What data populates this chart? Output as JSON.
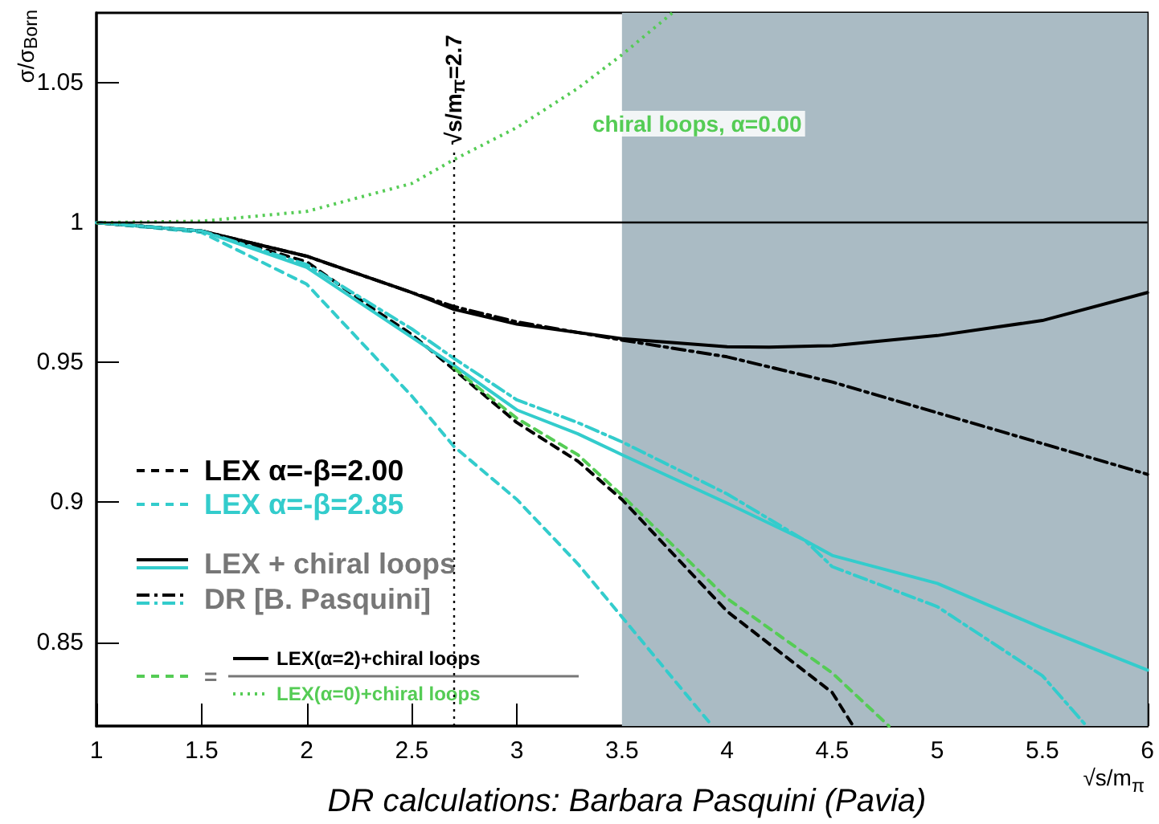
{
  "chart_data": {
    "type": "line",
    "xlabel": "√s/m$_{π}$",
    "ylabel": "σ/σ$_{Born}$",
    "xlim": [
      1,
      6
    ],
    "xticks": [
      1,
      1.5,
      2,
      2.5,
      3,
      3.5,
      4,
      4.5,
      5,
      5.5,
      6
    ],
    "ylim": [
      0.82,
      1.075
    ],
    "yticks": [
      0.85,
      0.9,
      0.95,
      1,
      1.05
    ],
    "grid": false,
    "legend": "bottom left",
    "marker": "none",
    "series": [
      {
        "name": "LEX α=-β=2.00",
        "color": "#000000",
        "line_style": "dashed",
        "x": [
          1,
          1.5,
          2,
          2.32,
          2.5,
          2.7,
          3,
          3.29,
          3.5,
          4,
          4.5,
          4.6
        ],
        "values": [
          1,
          0.997,
          0.986,
          0.969,
          0.96,
          0.9475,
          0.9285,
          0.9147,
          0.901,
          0.861,
          0.832,
          0.82
        ]
      },
      {
        "name": "LEX α=-β=2.85",
        "color": "#33cccc",
        "line_style": "dashed",
        "x": [
          1,
          1.5,
          2,
          2.5,
          2.7,
          3,
          3.29,
          3.5,
          3.93
        ],
        "values": [
          1,
          0.9965,
          0.978,
          0.938,
          0.92,
          0.901,
          0.878,
          0.859,
          0.82
        ]
      },
      {
        "name": "LEX + chiral loops",
        "color": "#000000",
        "line_style": "solid",
        "x": [
          1,
          1.5,
          2,
          2.5,
          2.7,
          3,
          3.5,
          4,
          4.2,
          4.5,
          5,
          5.5,
          6
        ],
        "values": [
          1,
          0.997,
          0.988,
          0.975,
          0.969,
          0.9637,
          0.9585,
          0.9556,
          0.9555,
          0.956,
          0.9596,
          0.965,
          0.975
        ]
      },
      {
        "color": "#33cccc",
        "line_style": "solid",
        "x": [
          1,
          1.5,
          2,
          2.5,
          2.7,
          3,
          3.29,
          3.5,
          4,
          4.37,
          4.5,
          5,
          5.5,
          6
        ],
        "values": [
          1,
          0.997,
          0.984,
          0.959,
          0.949,
          0.933,
          0.9245,
          0.917,
          0.8997,
          0.8864,
          0.881,
          0.871,
          0.855,
          0.84
        ]
      },
      {
        "name": "DR [B. Pasquini]",
        "color": "#000000",
        "line_style": "dashdot",
        "x": [
          1,
          1.5,
          2,
          2.5,
          2.7,
          3,
          3.5,
          4,
          4.5,
          5,
          5.5,
          6
        ],
        "values": [
          1,
          0.997,
          0.988,
          0.975,
          0.97,
          0.9645,
          0.958,
          0.952,
          0.943,
          0.932,
          0.921,
          0.91
        ]
      },
      {
        "color": "#33cccc",
        "line_style": "dashdot",
        "x": [
          1,
          1.5,
          2,
          2.5,
          2.7,
          3,
          3.29,
          3.5,
          4,
          4.37,
          4.5,
          5,
          5.5,
          5.71
        ],
        "values": [
          1,
          0.997,
          0.985,
          0.962,
          0.9515,
          0.9366,
          0.9285,
          0.9216,
          0.903,
          0.8864,
          0.877,
          0.8627,
          0.838,
          0.82
        ]
      },
      {
        "color": "#55cc55",
        "line_style": "dashed",
        "x": [
          2.7,
          3,
          3.29,
          3.5,
          4,
          4.5,
          4.77
        ],
        "values": [
          0.948,
          0.93,
          0.917,
          0.9025,
          0.8656,
          0.839,
          0.82
        ]
      },
      {
        "name": "chiral loops, α=0.00",
        "color": "#55cc55",
        "line_style": "dotted",
        "x": [
          1,
          1.5,
          2,
          2.5,
          2.7,
          3,
          3.29,
          3.5,
          3.74
        ],
        "values": [
          1,
          1.0005,
          1.004,
          1.014,
          1.0225,
          1.034,
          1.048,
          1.06,
          1.075
        ]
      }
    ],
    "ref_lines": [
      {
        "axis": "y",
        "value": 1,
        "label": null,
        "color": "#000000",
        "line_style": "solid"
      },
      {
        "axis": "x",
        "value": 2.7,
        "label": "√s/m$_{π}$=2.7",
        "color": "#000000",
        "line_style": "dotted"
      }
    ],
    "bands": [
      {
        "axis": "x",
        "from": 3.5,
        "to": 6,
        "label": null,
        "color": "#aabbc4"
      }
    ],
    "annotations": [
      "=",
      "LEX(α=2)+chiral loops",
      "LEX(α=0)+chiral loops",
      "DR calculations: Barbara Pasquini (Pavia)"
    ]
  }
}
